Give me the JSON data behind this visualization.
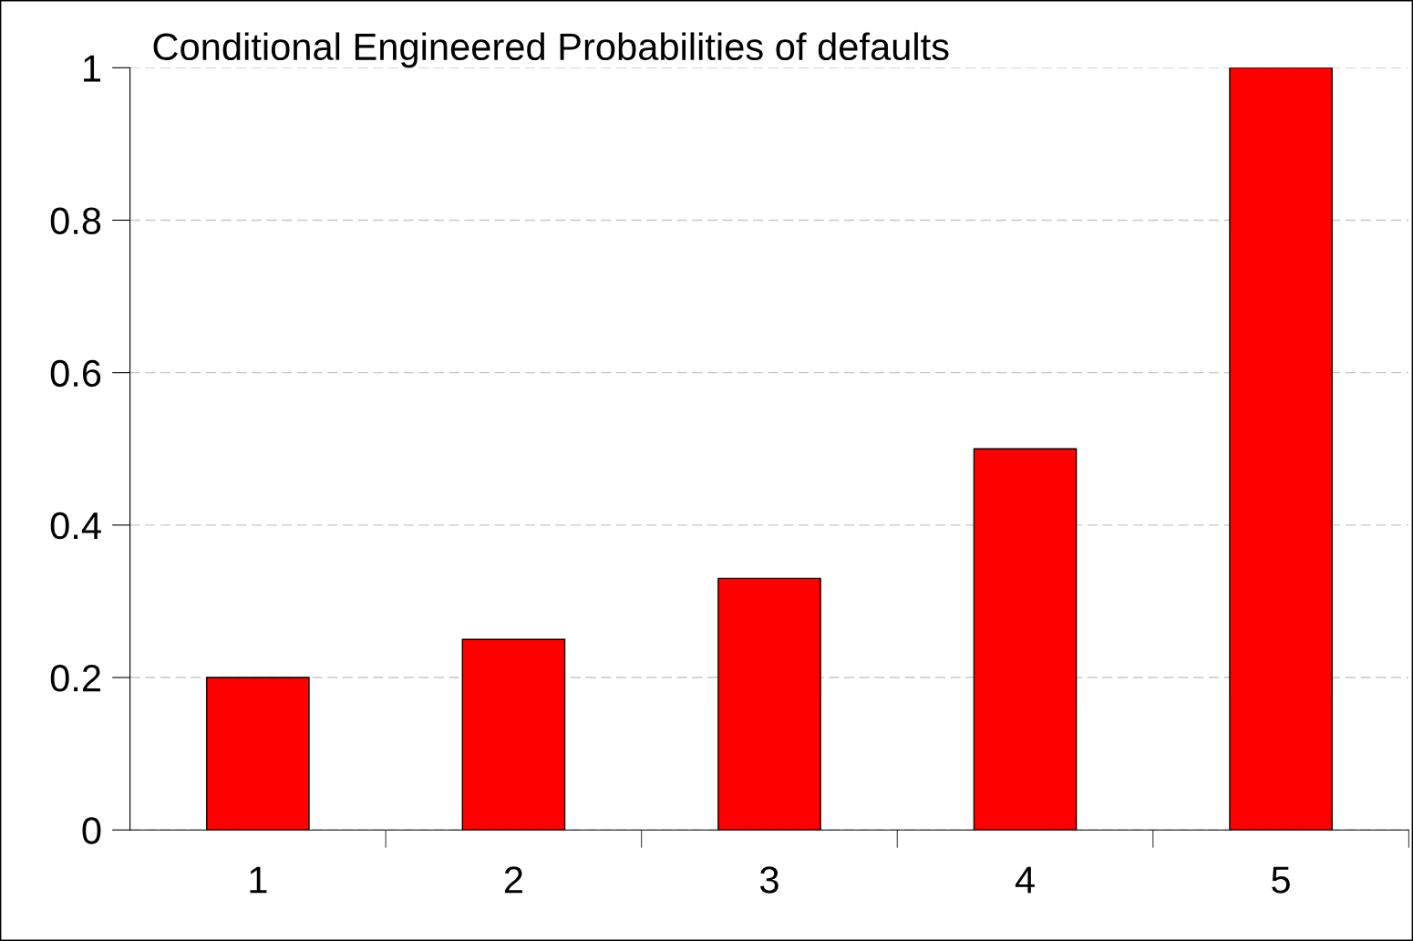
{
  "chart_data": {
    "type": "bar",
    "title": "Conditional Engineered Probabilities of defaults",
    "categories": [
      "1",
      "2",
      "3",
      "4",
      "5"
    ],
    "values": [
      0.2,
      0.25,
      0.33,
      0.5,
      1
    ],
    "color": "#ff0000",
    "ylim": [
      0,
      1
    ],
    "yticks": [
      0,
      0.2,
      0.4,
      0.6,
      0.8,
      1
    ],
    "grid": "y"
  }
}
